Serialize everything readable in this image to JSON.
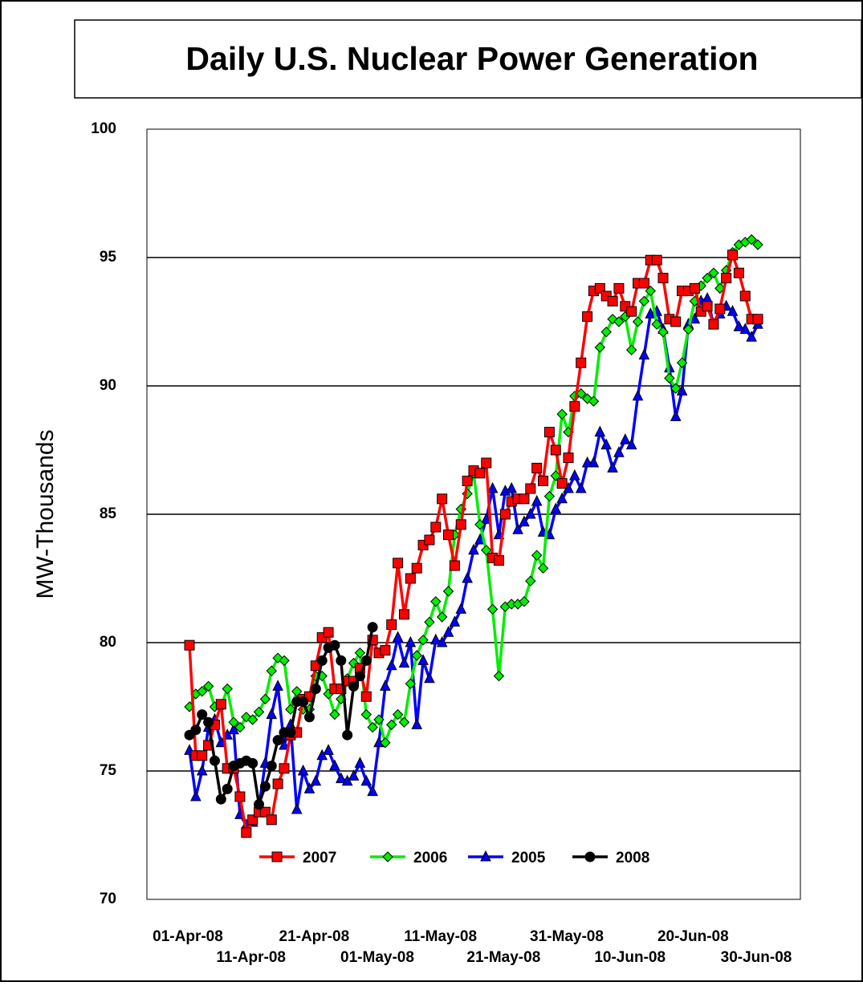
{
  "chart_data": {
    "type": "line",
    "title": "Daily U.S. Nuclear Power Generation",
    "y_label": "MW-Thousands",
    "ylim": [
      70,
      100
    ],
    "yticks": [
      70,
      75,
      80,
      85,
      90,
      95,
      100
    ],
    "grid": true,
    "legend": "bottom",
    "categories": [
      "01-Apr-08",
      null,
      null,
      null,
      null,
      null,
      null,
      null,
      null,
      null,
      "11-Apr-08",
      null,
      null,
      null,
      null,
      null,
      null,
      null,
      null,
      null,
      "21-Apr-08",
      null,
      null,
      null,
      null,
      null,
      null,
      null,
      null,
      null,
      "01-May-08",
      null,
      null,
      null,
      null,
      null,
      null,
      null,
      null,
      null,
      "11-May-08",
      null,
      null,
      null,
      null,
      null,
      null,
      null,
      null,
      null,
      "21-May-08",
      null,
      null,
      null,
      null,
      null,
      null,
      null,
      null,
      null,
      "31-May-08",
      null,
      null,
      null,
      null,
      null,
      null,
      null,
      null,
      null,
      "10-Jun-08",
      null,
      null,
      null,
      null,
      null,
      null,
      null,
      null,
      null,
      "20-Jun-08",
      null,
      null,
      null,
      null,
      null,
      null,
      null,
      null,
      null,
      "30-Jun-08"
    ],
    "series": [
      {
        "name": "2007",
        "color": "#ff0000",
        "marker": "square",
        "values": [
          79.9,
          75.6,
          75.6,
          76.0,
          76.8,
          77.6,
          75.1,
          75.1,
          74.0,
          72.6,
          73.1,
          73.4,
          73.4,
          73.1,
          74.5,
          75.1,
          76.4,
          76.5,
          77.8,
          77.9,
          79.1,
          80.2,
          80.4,
          78.2,
          78.2,
          78.5,
          78.5,
          79.0,
          77.9,
          80.1,
          79.6,
          79.7,
          80.7,
          83.1,
          81.1,
          82.5,
          82.9,
          83.8,
          84.0,
          84.5,
          85.6,
          84.2,
          83.0,
          84.6,
          86.3,
          86.7,
          86.6,
          87.0,
          83.3,
          83.2,
          85.0,
          85.5,
          85.6,
          85.6,
          86.0,
          86.8,
          86.3,
          88.2,
          87.5,
          86.2,
          87.2,
          89.2,
          90.9,
          92.7,
          93.7,
          93.8,
          93.5,
          93.3,
          93.8,
          93.1,
          92.9,
          94.0,
          94.0,
          94.9,
          94.9,
          94.2,
          92.6,
          92.5,
          93.7,
          93.7,
          93.8,
          92.9,
          93.1,
          92.4,
          93.0,
          94.2,
          95.1,
          94.4,
          93.5,
          92.6,
          92.6
        ]
      },
      {
        "name": "2006",
        "color": "#00ee00",
        "marker": "diamond",
        "values": [
          77.5,
          78.0,
          78.1,
          78.3,
          77.5,
          77.5,
          78.2,
          76.9,
          76.7,
          77.1,
          77.0,
          77.3,
          77.8,
          78.9,
          79.4,
          79.3,
          77.4,
          78.1,
          77.4,
          77.4,
          78.7,
          78.7,
          78.0,
          77.2,
          77.8,
          78.6,
          79.2,
          79.6,
          77.2,
          76.7,
          77.0,
          76.1,
          76.8,
          77.2,
          76.9,
          78.4,
          79.5,
          80.1,
          80.8,
          81.6,
          81.0,
          82.0,
          84.2,
          85.2,
          85.8,
          86.6,
          84.6,
          83.6,
          81.3,
          78.7,
          81.4,
          81.5,
          81.5,
          81.6,
          82.4,
          83.4,
          82.9,
          85.7,
          86.5,
          88.9,
          88.2,
          89.6,
          89.7,
          89.5,
          89.4,
          91.5,
          92.1,
          92.6,
          92.5,
          92.7,
          91.4,
          92.5,
          93.3,
          93.7,
          92.4,
          92.1,
          90.3,
          89.9,
          90.9,
          92.2,
          93.3,
          93.9,
          94.2,
          94.4,
          93.8,
          94.5,
          95.2,
          95.5,
          95.6,
          95.7,
          95.5
        ]
      },
      {
        "name": "2005",
        "color": "#0000ff",
        "marker": "triangle",
        "values": [
          75.8,
          74.0,
          75.0,
          76.7,
          77.0,
          76.1,
          76.4,
          76.6,
          73.3,
          72.9,
          73.0,
          73.6,
          75.3,
          77.2,
          78.3,
          76.0,
          76.8,
          73.5,
          75.0,
          74.3,
          74.6,
          75.6,
          75.8,
          75.2,
          74.7,
          74.6,
          74.8,
          75.3,
          74.6,
          74.2,
          76.1,
          78.3,
          79.1,
          80.2,
          79.2,
          80.0,
          76.8,
          79.3,
          78.6,
          80.1,
          80.0,
          80.4,
          80.8,
          81.3,
          82.5,
          83.6,
          84.0,
          84.8,
          86.0,
          84.2,
          85.9,
          86.0,
          84.4,
          84.7,
          85.0,
          85.5,
          84.3,
          84.2,
          85.2,
          85.6,
          86.0,
          86.5,
          86.0,
          87.0,
          87.0,
          88.2,
          87.7,
          86.8,
          87.4,
          87.9,
          87.7,
          89.6,
          91.2,
          92.8,
          92.9,
          92.2,
          90.7,
          88.8,
          89.8,
          92.4,
          92.6,
          93.3,
          93.4,
          92.4,
          92.8,
          93.1,
          92.9,
          92.3,
          92.2,
          91.9,
          92.4
        ]
      },
      {
        "name": "2008",
        "color": "#000000",
        "marker": "circle",
        "values": [
          76.4,
          76.6,
          77.2,
          76.9,
          75.4,
          73.9,
          74.3,
          75.2,
          75.3,
          75.4,
          75.3,
          73.7,
          74.4,
          75.2,
          76.2,
          76.5,
          76.5,
          77.7,
          77.7,
          77.1,
          78.2,
          79.3,
          79.8,
          79.9,
          79.3,
          76.4,
          78.3,
          78.7,
          79.3,
          80.6,
          null,
          null,
          null,
          null,
          null,
          null,
          null,
          null,
          null,
          null,
          null,
          null,
          null,
          null,
          null,
          null,
          null,
          null,
          null,
          null,
          null,
          null,
          null,
          null,
          null,
          null,
          null,
          null,
          null,
          null,
          null,
          null,
          null,
          null,
          null,
          null,
          null,
          null,
          null,
          null,
          null,
          null,
          null,
          null,
          null,
          null,
          null,
          null,
          null,
          null,
          null,
          null,
          null,
          null,
          null,
          null,
          null,
          null,
          null,
          null,
          null
        ]
      }
    ]
  }
}
